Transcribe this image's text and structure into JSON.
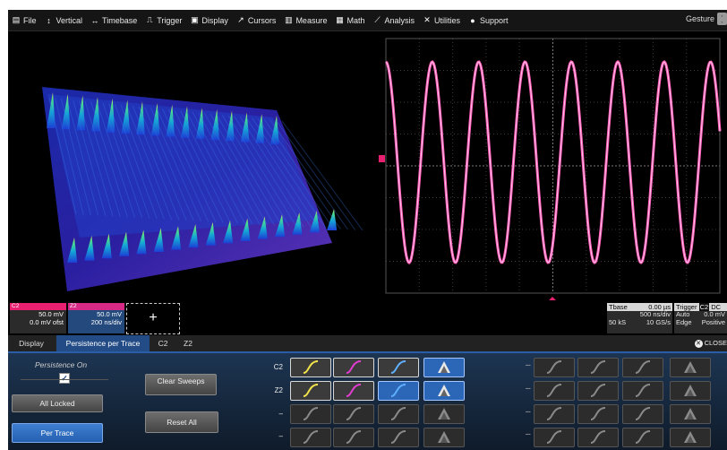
{
  "menu": [
    {
      "label": "File",
      "icon": "file-icon"
    },
    {
      "label": "Vertical",
      "icon": "vertical-icon"
    },
    {
      "label": "Timebase",
      "icon": "timebase-icon"
    },
    {
      "label": "Trigger",
      "icon": "trigger-icon"
    },
    {
      "label": "Display",
      "icon": "display-icon"
    },
    {
      "label": "Cursors",
      "icon": "cursors-icon"
    },
    {
      "label": "Measure",
      "icon": "measure-icon"
    },
    {
      "label": "Math",
      "icon": "math-icon"
    },
    {
      "label": "Analysis",
      "icon": "analysis-icon"
    },
    {
      "label": "Utilities",
      "icon": "utilities-icon"
    },
    {
      "label": "Support",
      "icon": "support-icon"
    }
  ],
  "gesture": {
    "label": "Gesture"
  },
  "channels": {
    "c2": {
      "label": "C2",
      "value1": "50.0 mV",
      "value2": "0.0 mV ofst",
      "color": "#e8206f"
    },
    "z2": {
      "label": "Z2",
      "value1": "50.0 mV",
      "value2": "200 ns/div",
      "color": "#d62a86"
    },
    "add_label": "+"
  },
  "timebase": {
    "label": "Tbase",
    "value": "0.00 µs",
    "row1": "500 ns/div",
    "row2_left": "50 kS",
    "row2_right": "10 GS/s"
  },
  "trigger": {
    "label": "Trigger",
    "badge": "C2",
    "coupling": "DC",
    "row1_left": "Auto",
    "row1_right": "0.0 mV",
    "row2_left": "Edge",
    "row2_right": "Positive"
  },
  "tabs": [
    {
      "label": "Display"
    },
    {
      "label": "Persistence per Trace"
    },
    {
      "label": "C2"
    },
    {
      "label": "Z2"
    }
  ],
  "close_label": "CLOSE",
  "persistence": {
    "label": "Persistence On",
    "checked": true
  },
  "buttons": {
    "all_locked": "All Locked",
    "per_trace": "Per Trace",
    "clear_sweeps": "Clear Sweeps",
    "reset_all": "Reset All"
  },
  "rows": [
    {
      "label": "C2"
    },
    {
      "label": "Z2"
    },
    {
      "label": "–"
    },
    {
      "label": "–"
    }
  ],
  "colors": {
    "accent": "#2a5da8",
    "trace_pink": "#ff4fb0",
    "c2": "#e8206f",
    "grid": "#555555"
  }
}
